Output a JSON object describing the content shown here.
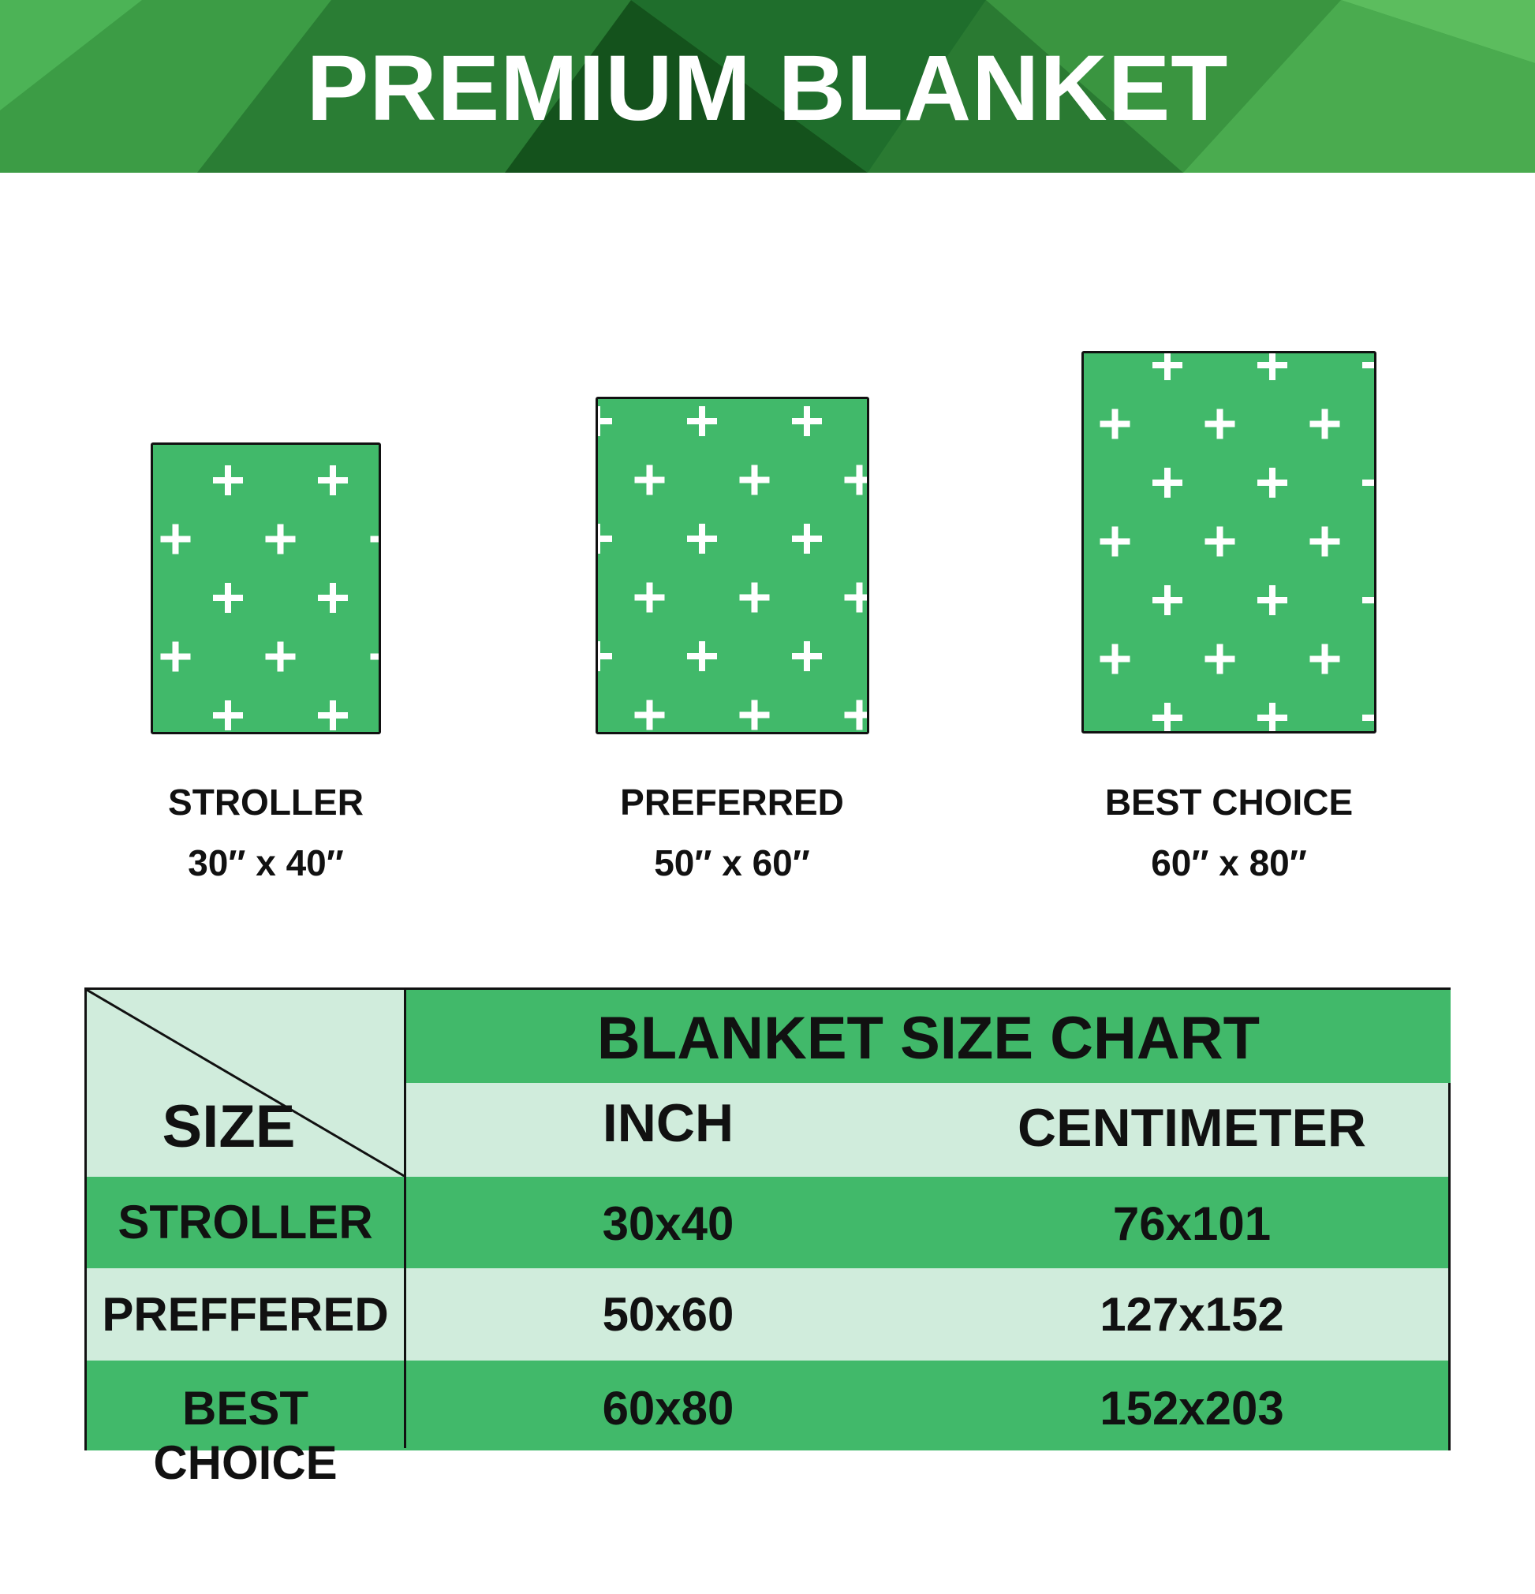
{
  "header": {
    "title": "PREMIUM BLANKET"
  },
  "colors": {
    "green": "#41b96a",
    "light_green": "#d0ecdc",
    "header_dark": "#1f6e2c",
    "header_light": "#4cb356"
  },
  "blankets": [
    {
      "name": "STROLLER",
      "size": "30″ x 40″"
    },
    {
      "name": "PREFERRED",
      "size": "50″ x 60″"
    },
    {
      "name": "BEST CHOICE",
      "size": "60″ x 80″"
    }
  ],
  "pattern_icon": "white-cross-icon",
  "table": {
    "title": "BLANKET SIZE CHART",
    "corner_label": "SIZE",
    "columns": [
      "INCH",
      "CENTIMETER"
    ],
    "rows": [
      {
        "size": "STROLLER",
        "inch": "30x40",
        "cm": "76x101"
      },
      {
        "size": "PREFFERED",
        "inch": "50x60",
        "cm": "127x152"
      },
      {
        "size": "BEST CHOICE",
        "inch": "60x80",
        "cm": "152x203"
      }
    ]
  }
}
